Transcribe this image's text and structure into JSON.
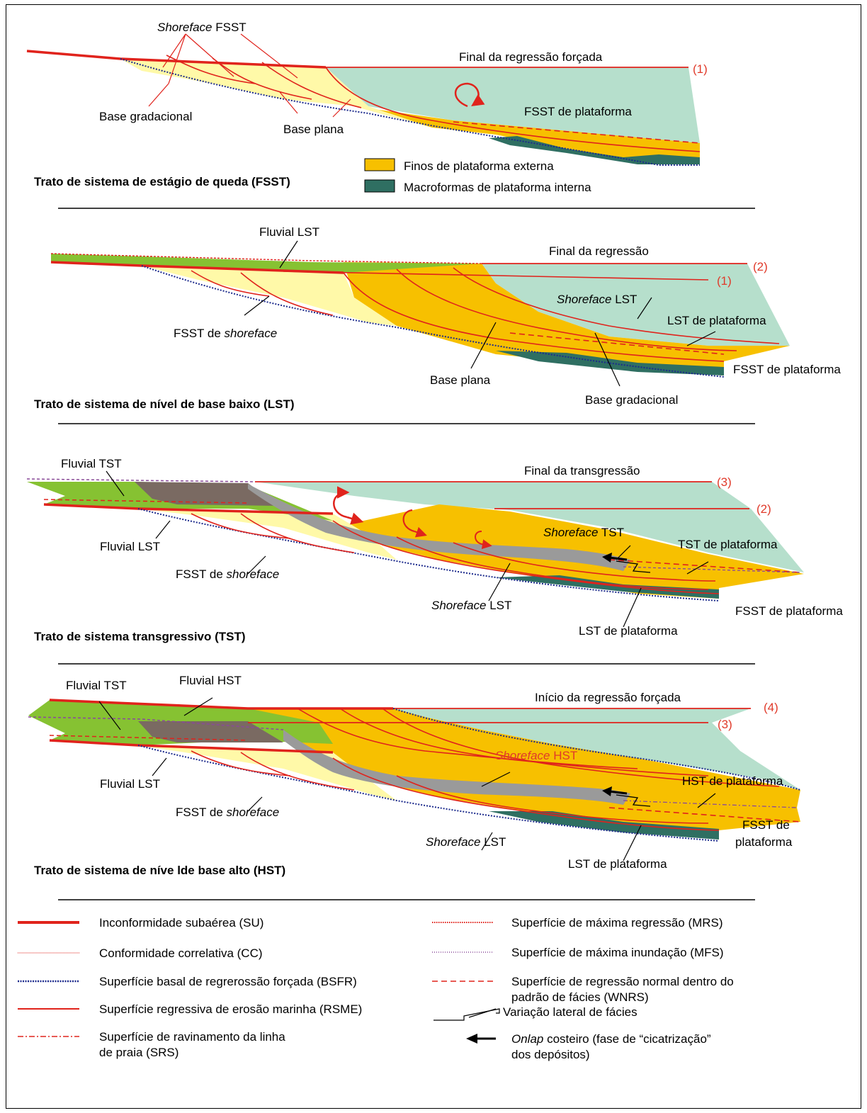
{
  "colors": {
    "sea": "#b6dfcc",
    "outer_shelf_fines": "#f7c000",
    "shoreface_yellow": "#fff9a8",
    "inner_shelf_macroforms": "#2f6f62",
    "fluvial_green": "#86c232",
    "estuarine_brown": "#7a6a62",
    "surface_red": "#e0231c",
    "bsfr_blue": "#1c2a8c",
    "mfs_grey": "#9a9a9a"
  },
  "panels": [
    {
      "title": "Trato de sistema de estágio de queda (FSST)",
      "labels": {
        "shoreface_fsst_a": "Shoreface",
        "shoreface_fsst_b": " FSST",
        "end_forced_regression": "Final da regressão forçada",
        "marker_1": "(1)",
        "base_gradacional": "Base gradacional",
        "base_plana": "Base plana",
        "fsst_plataforma": "FSST de plataforma"
      },
      "legend": {
        "outer_fines": "Finos de plataforma externa",
        "inner_macroforms": "Macroformas de plataforma interna"
      }
    },
    {
      "title": "Trato de sistema de nível de base baixo (LST)",
      "labels": {
        "fluvial_lst": "Fluvial LST",
        "end_regression": "Final da regressão",
        "marker_2": "(2)",
        "marker_1": "(1)",
        "shoreface_lst_a": "Shoreface",
        "shoreface_lst_b": " LST",
        "lst_plataforma": "LST de plataforma",
        "fsst_shoreface_a": "FSST de ",
        "fsst_shoreface_b": "shoreface",
        "fsst_plataforma": "FSST de plataforma",
        "base_plana": "Base plana",
        "base_gradacional": "Base gradacional"
      }
    },
    {
      "title": "Trato de sistema transgressivo (TST)",
      "labels": {
        "fluvial_tst": "Fluvial TST",
        "end_transgression": "Final da transgressão",
        "marker_3": "(3)",
        "marker_2": "(2)",
        "shoreface_tst_a": "Shoreface",
        "shoreface_tst_b": " TST",
        "tst_plataforma": "TST de plataforma",
        "fluvial_lst": "Fluvial LST",
        "fsst_shoreface_a": "FSST de ",
        "fsst_shoreface_b": "shoreface",
        "fsst_plataforma": "FSST de plataforma",
        "shoreface_lst_a": "Shoreface",
        "shoreface_lst_b": " LST",
        "lst_plataforma": "LST de plataforma"
      }
    },
    {
      "title": "Trato de sistema de níve lde base  alto (HST)",
      "labels": {
        "fluvial_tst": "Fluvial TST",
        "fluvial_hst": "Fluvial HST",
        "start_forced_regression": "Início da regressão forçada",
        "marker_4": "(4)",
        "marker_3": "(3)",
        "shoreface_hst_a": "Shoreface",
        "shoreface_hst_b": " HST",
        "hst_plataforma": "HST de plataforma",
        "fluvial_lst": "Fluvial LST",
        "fsst_shoreface_a": "FSST de ",
        "fsst_shoreface_b": "shoreface",
        "fsst_plataforma_1": "FSST de",
        "fsst_plataforma_2": "plataforma",
        "shoreface_lst_a": "Shoreface",
        "shoreface_lst_b": " LST",
        "lst_plataforma": "LST de plataforma"
      }
    }
  ],
  "legend": {
    "left": [
      {
        "label": "Inconformidade subaérea (SU)",
        "style": "su"
      },
      {
        "label": "Conformidade correlativa (CC)",
        "style": "cc"
      },
      {
        "label": "Superfície basal de regrerossão forçada (BSFR)",
        "style": "bsfr"
      },
      {
        "label": "Superfície regressiva de erosão marinha (RSME)",
        "style": "rsme"
      },
      {
        "label_1": "Superfície de ravinamento da linha",
        "label_2": "de praia (SRS)",
        "style": "srs"
      }
    ],
    "right": [
      {
        "label": "Superfície de máxima regressão (MRS)",
        "style": "mrs"
      },
      {
        "label": "Superfície de máxima inundação (MFS)",
        "style": "mfs"
      },
      {
        "label_1": "Superfície de regressão normal dentro do",
        "label_2": "padrão de fácies (WNRS)",
        "style": "wnrs"
      },
      {
        "label": "Variação lateral de fácies",
        "style": "facies"
      },
      {
        "label_1a": "Onlap",
        "label_1b": " costeiro (fase de “cicatrização”",
        "label_2": "dos depósitos)",
        "style": "onlap"
      }
    ]
  }
}
